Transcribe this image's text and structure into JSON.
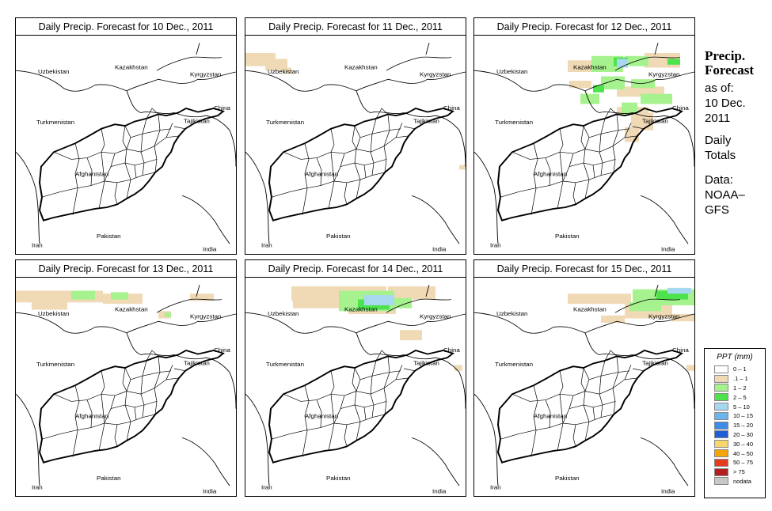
{
  "panels": [
    {
      "title_prefix": "Daily Precip. Forecast for ",
      "date": "10 Dec., 2011"
    },
    {
      "title_prefix": "Daily Precip. Forecast for ",
      "date": "11 Dec., 2011"
    },
    {
      "title_prefix": "Daily Precip. Forecast for ",
      "date": "12 Dec., 2011"
    },
    {
      "title_prefix": "Daily Precip. Forecast for ",
      "date": "13 Dec., 2011"
    },
    {
      "title_prefix": "Daily Precip. Forecast for ",
      "date": "14 Dec., 2011"
    },
    {
      "title_prefix": "Daily Precip. Forecast for ",
      "date": "15 Dec., 2011"
    }
  ],
  "map_labels": {
    "uzbekistan": "Uzbekistan",
    "kazakhstan": "Kazakhstan",
    "kyrgyzstan": "Kyrgyzstan",
    "china": "China",
    "tajikistan": "Tajikistan",
    "turkmenistan": "Turkmenistan",
    "afghanistan": "Afghanistan",
    "iran": "Iran",
    "pakistan": "Pakistan",
    "india": "India"
  },
  "side": {
    "title_line1": "Precip.",
    "title_line2": "Forecast",
    "asof": "as of:",
    "date_line1": "10 Dec.",
    "date_line2": "2011",
    "daily_line1": "Daily",
    "daily_line2": "Totals",
    "data_line1": "Data:",
    "data_line2": "NOAA–",
    "data_line3": "GFS"
  },
  "legend": {
    "title": "PPT (mm)",
    "items": [
      {
        "label": "0 – 1",
        "color": "#ffffff"
      },
      {
        "label": ".1 – 1",
        "color": "#f0d9b5"
      },
      {
        "label": "1 – 2",
        "color": "#a6f28f"
      },
      {
        "label": "2 – 5",
        "color": "#4ce34c"
      },
      {
        "label": "5 – 10",
        "color": "#a8d8f0"
      },
      {
        "label": "10 – 15",
        "color": "#6cb4ee"
      },
      {
        "label": "15 – 20",
        "color": "#3c8ce8"
      },
      {
        "label": "20 – 30",
        "color": "#1f5fd6"
      },
      {
        "label": "30 – 40",
        "color": "#f5d76e"
      },
      {
        "label": "40 – 50",
        "color": "#f5a500"
      },
      {
        "label": "50 – 75",
        "color": "#e63c1e"
      },
      {
        "label": "> 75",
        "color": "#b41e1e"
      },
      {
        "label": "nodata",
        "color": "#c8c8c8"
      }
    ]
  }
}
